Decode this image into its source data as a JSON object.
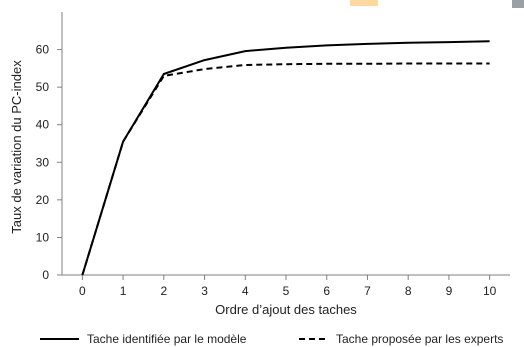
{
  "chart_data": {
    "type": "line",
    "title": "",
    "xlabel": "Ordre d’ajout des taches",
    "ylabel": "Taux de variation du PC-index",
    "x": [
      0,
      1,
      2,
      3,
      4,
      5,
      6,
      7,
      8,
      9,
      10
    ],
    "xticks": [
      "0",
      "1",
      "2",
      "3",
      "4",
      "5",
      "6",
      "7",
      "8",
      "9",
      "10"
    ],
    "yticks": [
      "0",
      "10",
      "20",
      "30",
      "40",
      "50",
      "60"
    ],
    "xlim": [
      -0.5,
      10.5
    ],
    "ylim": [
      0,
      70
    ],
    "grid": false,
    "legend_position": "bottom",
    "series": [
      {
        "name": "Tache identifiée par le modèle",
        "style": "solid",
        "color": "#000000",
        "values": [
          0,
          35.5,
          53.5,
          57.2,
          59.6,
          60.5,
          61.1,
          61.5,
          61.8,
          62.0,
          62.2
        ]
      },
      {
        "name": "Tache proposée par les experts",
        "style": "dashed",
        "color": "#000000",
        "values": [
          0,
          35.5,
          53.0,
          54.8,
          55.9,
          56.1,
          56.2,
          56.2,
          56.3,
          56.3,
          56.3
        ]
      }
    ]
  }
}
